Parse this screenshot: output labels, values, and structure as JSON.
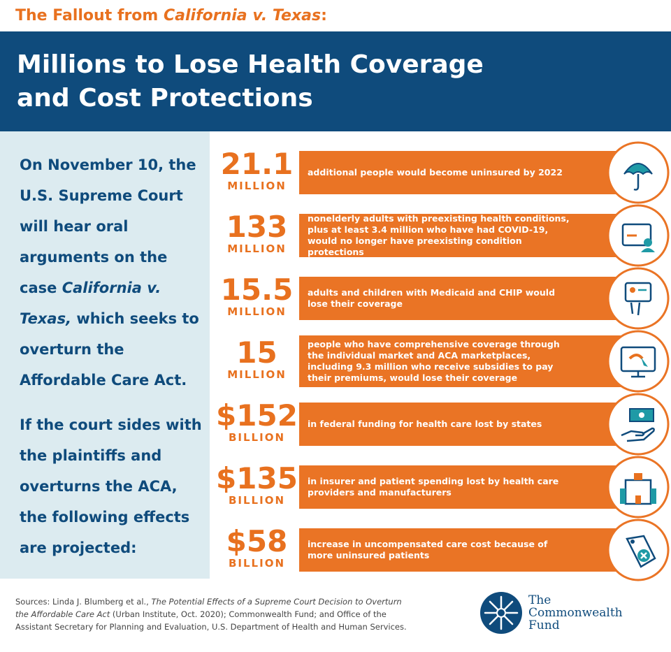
{
  "header": {
    "kicker": [
      {
        "text": "The Fallout from "
      },
      {
        "text": "California v. Texas",
        "italic": true
      },
      {
        "text": ":"
      }
    ],
    "title_line1": "Millions to Lose Health Coverage",
    "title_line2": "and Cost Protections"
  },
  "intro": {
    "paragraph1": [
      {
        "text": "On November 10, the U.S. Supreme Court will hear oral arguments on the case "
      },
      {
        "text": "California v. Texas,",
        "italic": true
      },
      {
        "text": " which seeks to overturn the Affordable Care Act."
      }
    ],
    "paragraph2": [
      {
        "text": "If the court sides with the plaintiffs and overturns the ACA, the following effects are projected:"
      }
    ]
  },
  "effects": [
    {
      "number": "21.1",
      "unit": "MILLION",
      "text": "additional people would become uninsured by 2022"
    },
    {
      "number": "133",
      "unit": "MILLION",
      "text": "nonelderly adults with preexisting health conditions, plus at least 3.4 million who have had COVID-19, would no longer have preexisting condition protections"
    },
    {
      "number": "15.5",
      "unit": "MILLION",
      "text": "adults and children with Medicaid and CHIP would lose their coverage"
    },
    {
      "number": "15",
      "unit": "MILLION",
      "text": "people who have comprehensive coverage through the individual market and ACA marketplaces, including 9.3 million who receive subsidies to pay their premiums, would lose their coverage"
    },
    {
      "number": "$152",
      "unit": "BILLION",
      "text": "in federal funding for health care lost by states"
    },
    {
      "number": "$135",
      "unit": "BILLION",
      "text": "in insurer and patient spending lost by health care providers and manufacturers"
    },
    {
      "number": "$58",
      "unit": "BILLION",
      "text": "increase in uncompensated care cost because of more uninsured patients"
    }
  ],
  "footer": {
    "sources": [
      {
        "text": "Sources: Linda J. Blumberg et al., "
      },
      {
        "text": "The Potential Effects of a Supreme Court Decision to Overturn the Affordable Care Act",
        "italic": true
      },
      {
        "text": " (Urban Institute, Oct. 2020); Commonwealth Fund; and Office of the Assistant Secretary for Planning and Evaluation, U.S. Department of Health and Human Services."
      }
    ],
    "logo_line1": "The",
    "logo_line2": "Commonwealth",
    "logo_line3": "Fund"
  }
}
